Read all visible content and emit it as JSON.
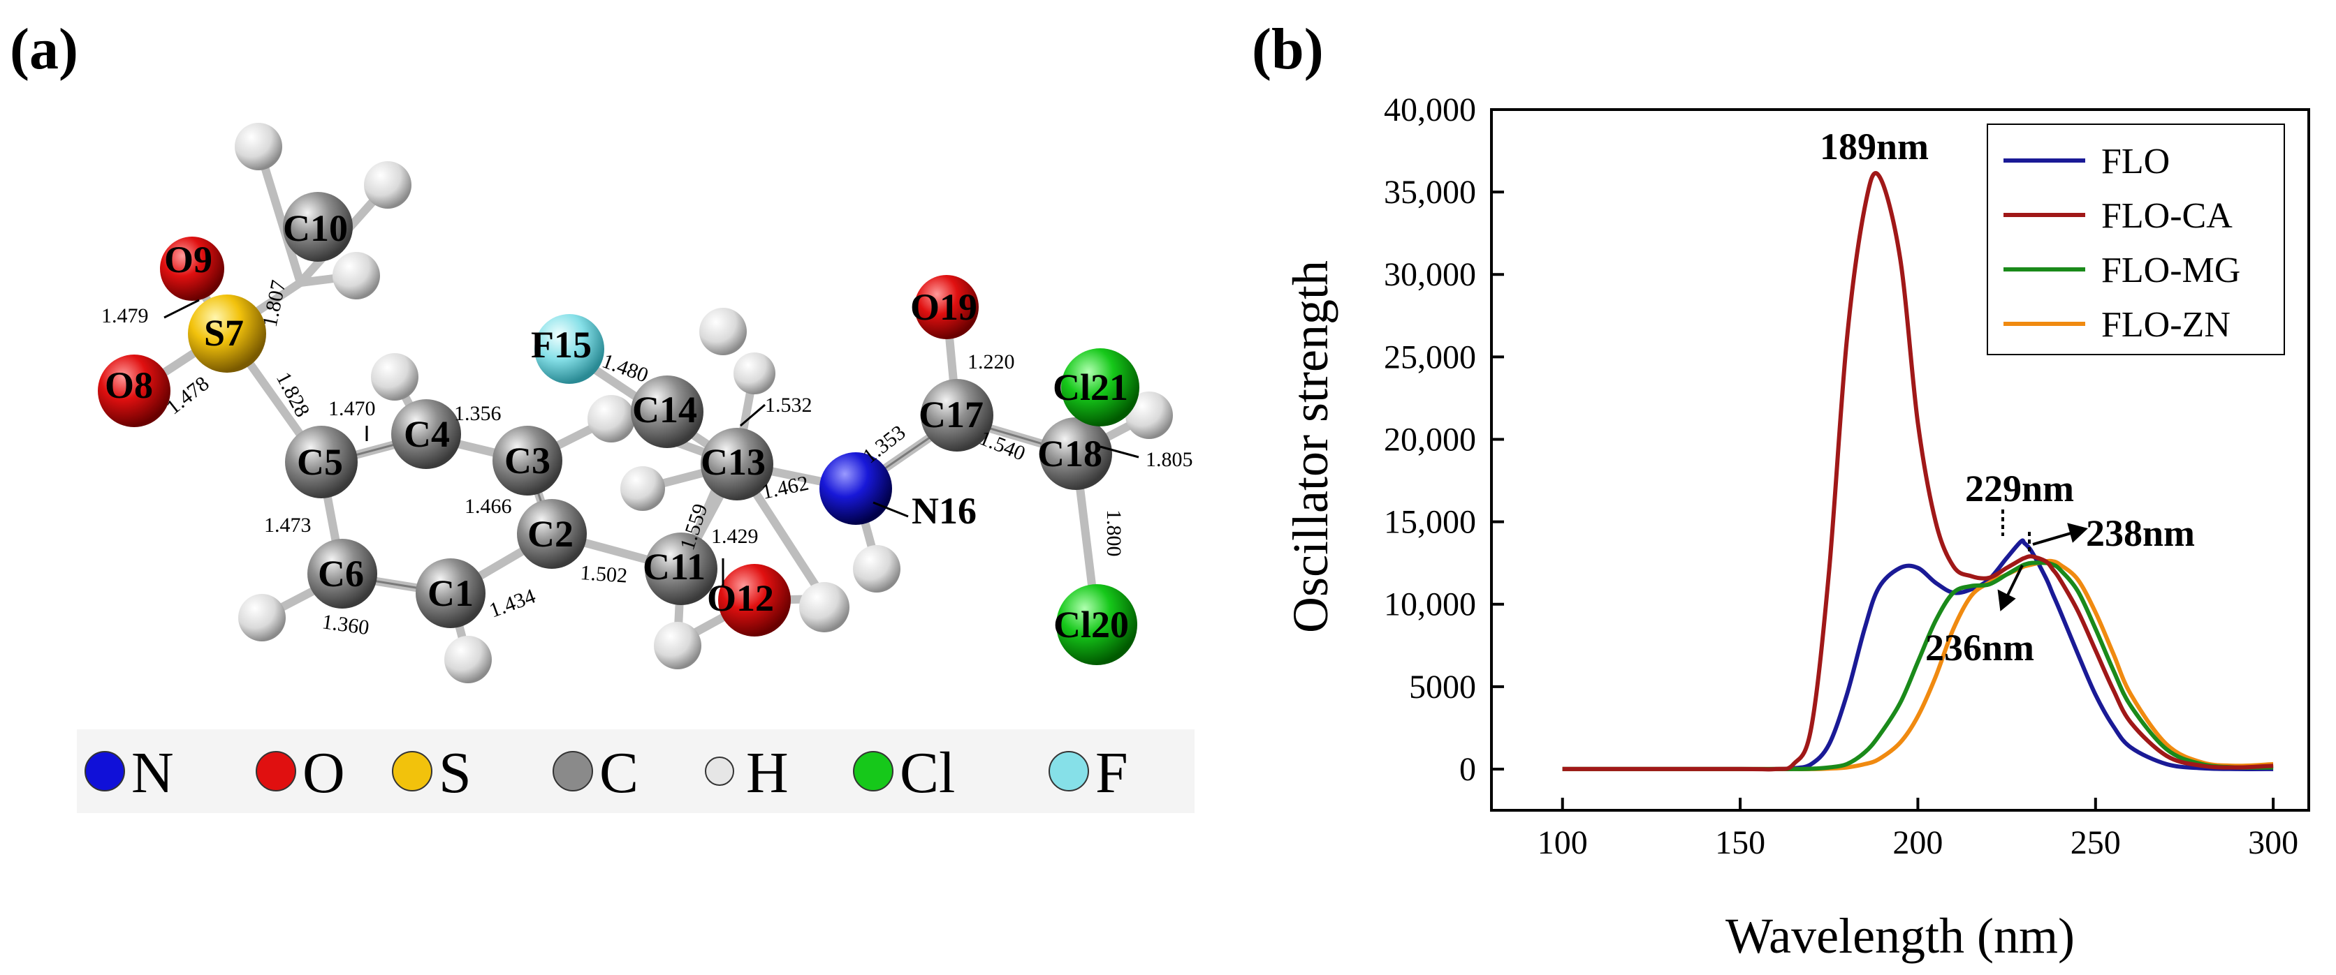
{
  "panel_a": {
    "label": "(a)",
    "atoms": {
      "S7": "S7",
      "O9": "O9",
      "O8": "O8",
      "C10": "C10",
      "C5": "C5",
      "C4": "C4",
      "C3": "C3",
      "C2": "C2",
      "C6": "C6",
      "C1": "C1",
      "F15": "F15",
      "C14": "C14",
      "C13": "C13",
      "C11": "C11",
      "O12": "O12",
      "N16": "N16",
      "C17": "C17",
      "O19": "O19",
      "C18": "C18",
      "Cl21": "Cl21",
      "Cl20": "Cl20"
    },
    "bonds": {
      "S7_O9": "1.479",
      "S7_C10": "1.807",
      "S7_O8": "1.478",
      "S7_C5": "1.828",
      "C5_C4": "1.470",
      "C4_C3": "1.356",
      "C3_C2": "1.466",
      "C5_C6": "1.473",
      "C6_C1": "1.360",
      "C1_C2": "1.434",
      "C2_C11": "1.502",
      "F15_C14": "1.480",
      "C14_C13": "1.532",
      "C13_C11": "1.559",
      "C11_O12": "1.429",
      "C13_N16": "1.462",
      "N16_C17": "1.353",
      "C17_O19": "1.220",
      "C17_C18": "1.540",
      "C18_Cl21": "1.805",
      "C18_Cl20": "1.800"
    },
    "legend": [
      {
        "symbol": "N",
        "color": "#1010d8"
      },
      {
        "symbol": "O",
        "color": "#e01010"
      },
      {
        "symbol": "S",
        "color": "#f2c20c"
      },
      {
        "symbol": "C",
        "color": "#8a8a8a"
      },
      {
        "symbol": "H",
        "color": "#e6e6e6"
      },
      {
        "symbol": "Cl",
        "color": "#16c81a"
      },
      {
        "symbol": "F",
        "color": "#86e0e8"
      }
    ]
  },
  "panel_b": {
    "label": "(b)",
    "annotations": {
      "p189": "189nm",
      "p229": "229nm",
      "p238": "238nm",
      "p236": "236nm"
    },
    "legend_labels": [
      "FLO",
      "FLO-CA",
      "FLO-MG",
      "FLO-ZN"
    ]
  },
  "chart_data": {
    "type": "line",
    "title": "",
    "xlabel": "Wavelength (nm)",
    "ylabel": "Oscillator strength",
    "xlim": [
      80,
      310
    ],
    "ylim": [
      -2500,
      40000
    ],
    "xticks": [
      "100",
      "150",
      "200",
      "250",
      "300"
    ],
    "yticks": [
      "0",
      "5000",
      "10,000",
      "15,000",
      "20,000",
      "25,000",
      "30,000",
      "35,000",
      "40,000"
    ],
    "grid": false,
    "legend_position": "top-right",
    "x": [
      100,
      150,
      160,
      165,
      170,
      175,
      180,
      185,
      189,
      195,
      200,
      205,
      210,
      215,
      220,
      225,
      229,
      230,
      232,
      236,
      238,
      240,
      245,
      250,
      255,
      260,
      270,
      280,
      290,
      300
    ],
    "series": [
      {
        "name": "FLO",
        "color": "#1a1a96",
        "values": [
          0,
          0,
          0,
          50,
          300,
          1500,
          4500,
          8500,
          11000,
          12200,
          12200,
          11300,
          10700,
          10900,
          11500,
          12800,
          13800,
          13700,
          13200,
          11600,
          10600,
          9600,
          7000,
          4500,
          2600,
          1300,
          300,
          50,
          0,
          0
        ]
      },
      {
        "name": "FLO-CA",
        "color": "#a01818",
        "values": [
          0,
          0,
          0,
          300,
          2500,
          12000,
          26000,
          34000,
          36000,
          31000,
          21000,
          15000,
          12300,
          11700,
          11600,
          12200,
          12700,
          12800,
          12900,
          12600,
          12100,
          11500,
          9600,
          7200,
          4800,
          2800,
          800,
          200,
          100,
          200
        ]
      },
      {
        "name": "FLO-MG",
        "color": "#1a8a1a",
        "values": [
          0,
          0,
          0,
          0,
          20,
          100,
          300,
          1000,
          2000,
          4000,
          6500,
          9000,
          10700,
          11100,
          11200,
          11800,
          12300,
          12400,
          12500,
          12500,
          12400,
          12100,
          10800,
          8500,
          6000,
          3800,
          1200,
          300,
          100,
          100
        ]
      },
      {
        "name": "FLO-ZN",
        "color": "#f08a10",
        "values": [
          0,
          0,
          0,
          0,
          0,
          30,
          100,
          300,
          600,
          1600,
          3200,
          5600,
          8500,
          10500,
          11300,
          11800,
          12200,
          12300,
          12400,
          12600,
          12600,
          12400,
          11500,
          9500,
          7000,
          4500,
          1500,
          400,
          200,
          300
        ]
      }
    ]
  }
}
